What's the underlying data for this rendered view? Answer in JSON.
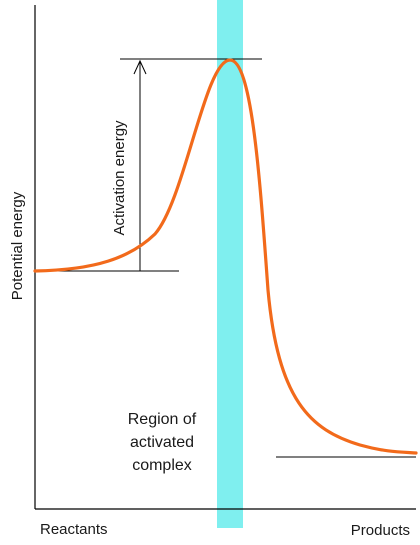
{
  "diagram": {
    "axis_label_y": "Potential energy",
    "label_reactants": "Reactants",
    "label_products": "Products",
    "label_activation": "Activation energy",
    "region_label": [
      "Region of",
      "activated",
      "complex"
    ]
  },
  "colors": {
    "curve": "#f26a1b",
    "region_band": "#7fefef",
    "axis": "#000000",
    "text": "#1a1a1a"
  }
}
